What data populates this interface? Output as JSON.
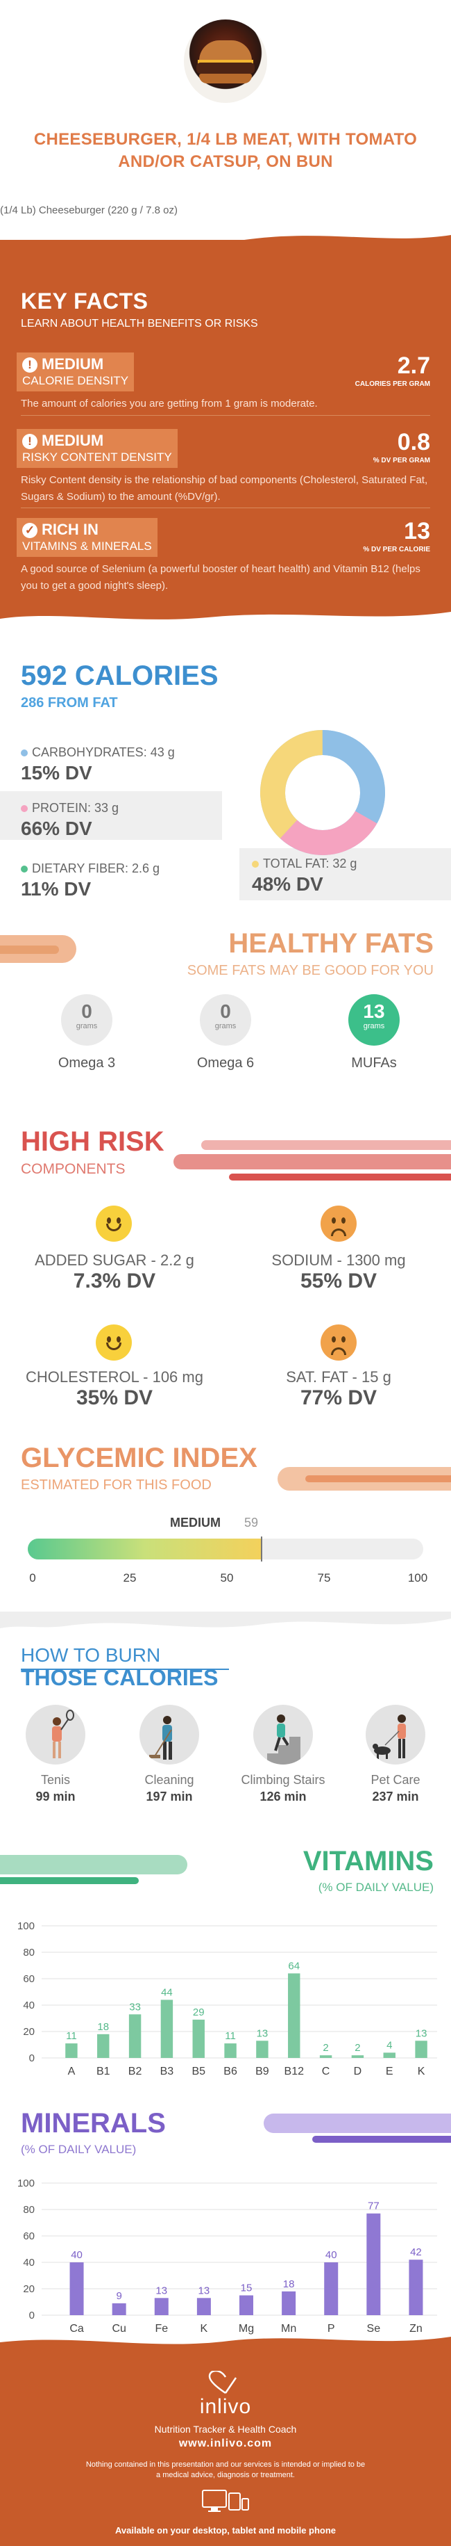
{
  "header": {
    "title": "CHEESEBURGER, 1/4 LB MEAT, WITH TOMATO AND/OR CATSUP, ON BUN",
    "subtitle": "(1/4 Lb) Cheeseburger (220 g / 7.8 oz)"
  },
  "key_facts": {
    "title": "KEY FACTS",
    "subtitle": "LEARN ABOUT HEALTH BENEFITS OR RISKS",
    "items": [
      {
        "level": "MEDIUM",
        "name": "CALORIE DENSITY",
        "value": "2.7",
        "unit": "CALORIES PER GRAM",
        "description": "The amount of calories you are getting from 1 gram is moderate.",
        "icon": "warning-icon"
      },
      {
        "level": "MEDIUM",
        "name": "RISKY CONTENT DENSITY",
        "value": "0.8",
        "unit": "% DV PER GRAM",
        "description": "Risky Content density is the relationship of bad components (Cholesterol, Saturated Fat, Sugars & Sodium) to the amount (%DV/gr).",
        "icon": "warning-icon"
      },
      {
        "level": "RICH IN",
        "name": "VITAMINS & MINERALS",
        "value": "13",
        "unit": "% DV PER CALORIE",
        "description": "A good source of Selenium (a powerful booster of heart health) and Vitamin B12 (helps you to get a good night's sleep).",
        "icon": "check-icon"
      }
    ]
  },
  "calories": {
    "title": "592 CALORIES",
    "subtitle": "286 FROM FAT",
    "macros": [
      {
        "label": "CARBOHYDRATES: 43 g",
        "dv": "15% DV",
        "color": "#8fbfe6"
      },
      {
        "label": "PROTEIN: 33 g",
        "dv": "66% DV",
        "color": "#f5a3c0"
      },
      {
        "label": "DIETARY FIBER: 2.6 g",
        "dv": "11% DV",
        "color": "#55c08e"
      },
      {
        "label": "TOTAL FAT: 32 g",
        "dv": "48% DV",
        "color": "#f6d77a"
      }
    ]
  },
  "healthy_fats": {
    "title": "HEALTHY FATS",
    "subtitle": "SOME FATS MAY BE GOOD FOR YOU",
    "items": [
      {
        "value": "0",
        "unit": "grams",
        "label": "Omega 3"
      },
      {
        "value": "0",
        "unit": "grams",
        "label": "Omega 6"
      },
      {
        "value": "13",
        "unit": "grams",
        "label": "MUFAs"
      }
    ]
  },
  "high_risk": {
    "title": "HIGH RISK",
    "subtitle": "COMPONENTS",
    "items": [
      {
        "label": "ADDED SUGAR - 2.2 g",
        "dv": "7.3% DV",
        "mood": "happy"
      },
      {
        "label": "SODIUM - 1300 mg",
        "dv": "55% DV",
        "mood": "sad"
      },
      {
        "label": "CHOLESTEROL - 106 mg",
        "dv": "35% DV",
        "mood": "happy"
      },
      {
        "label": "SAT. FAT - 15 g",
        "dv": "77% DV",
        "mood": "sad"
      }
    ]
  },
  "glycemic": {
    "title": "GLYCEMIC INDEX",
    "subtitle": "ESTIMATED FOR THIS FOOD",
    "level": "MEDIUM",
    "value": "59",
    "value_num": 59,
    "ticks": [
      "0",
      "25",
      "50",
      "75",
      "100"
    ]
  },
  "burn": {
    "title_line1": "HOW TO BURN",
    "title_line2": "THOSE CALORIES",
    "activities": [
      {
        "label": "Tenis",
        "minutes": "99 min",
        "icon": "tennis-icon"
      },
      {
        "label": "Cleaning",
        "minutes": "197 min",
        "icon": "cleaning-icon"
      },
      {
        "label": "Climbing Stairs",
        "minutes": "126 min",
        "icon": "stairs-icon"
      },
      {
        "label": "Pet Care",
        "minutes": "237 min",
        "icon": "pet-care-icon"
      }
    ]
  },
  "vitamins": {
    "title": "VITAMINS",
    "subtitle": "(% OF DAILY VALUE)"
  },
  "minerals": {
    "title": "MINERALS",
    "subtitle": "(% OF DAILY VALUE)"
  },
  "chart_data": [
    {
      "type": "bar",
      "categories": [
        "A",
        "B1",
        "B2",
        "B3",
        "B5",
        "B6",
        "B9",
        "B12",
        "C",
        "D",
        "E",
        "K"
      ],
      "values": [
        11,
        18,
        33,
        44,
        29,
        11,
        13,
        64,
        2,
        2,
        4,
        13
      ],
      "ylim": [
        0,
        100
      ],
      "yticks": [
        0,
        20,
        40,
        60,
        80,
        100
      ],
      "color": "#7dc9a0",
      "label_color": "#55b98a",
      "grid": true
    },
    {
      "type": "bar",
      "categories": [
        "Ca",
        "Cu",
        "Fe",
        "K",
        "Mg",
        "Mn",
        "P",
        "Se",
        "Zn"
      ],
      "values": [
        40,
        9,
        13,
        13,
        15,
        18,
        40,
        77,
        42
      ],
      "ylim": [
        0,
        100
      ],
      "yticks": [
        0,
        20,
        40,
        60,
        80,
        100
      ],
      "color": "#8f78d3",
      "label_color": "#7b5fc7",
      "grid": true
    }
  ],
  "footer": {
    "brand": "inlivo",
    "tagline": "Nutrition Tracker & Health Coach",
    "url": "www.inlivo.com",
    "disclaimer": "Nothing contained in this presentation and our services is intended or implied to be a medical advice, diagnosis or treatment.",
    "available": "Available on your desktop, tablet and mobile phone"
  }
}
